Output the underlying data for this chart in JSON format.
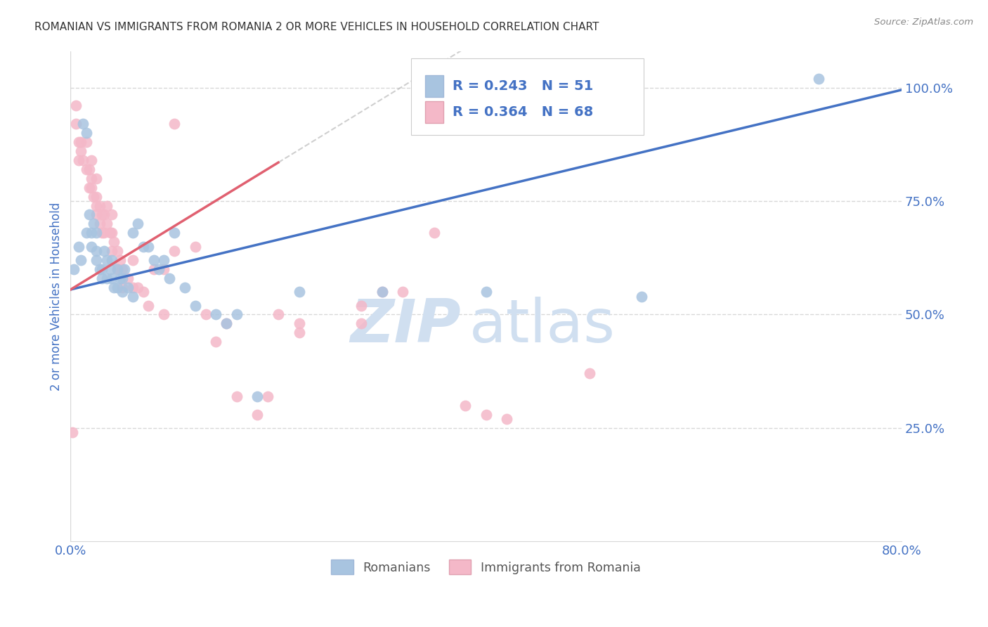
{
  "title": "ROMANIAN VS IMMIGRANTS FROM ROMANIA 2 OR MORE VEHICLES IN HOUSEHOLD CORRELATION CHART",
  "source": "Source: ZipAtlas.com",
  "ylabel": "2 or more Vehicles in Household",
  "xlim": [
    0.0,
    0.8
  ],
  "ylim": [
    0.0,
    1.08
  ],
  "romanians_color": "#a8c4e0",
  "immigrants_color": "#f4b8c8",
  "trendline_romanians_color": "#4472c4",
  "trendline_immigrants_color": "#e06070",
  "bg_color": "#ffffff",
  "grid_color": "#d8d8d8",
  "title_color": "#333333",
  "axis_label_color": "#4472c4",
  "watermark": "ZIPatlas",
  "watermark_color": "#d0dff0",
  "romanians_x": [
    0.003,
    0.008,
    0.01,
    0.012,
    0.015,
    0.015,
    0.018,
    0.02,
    0.02,
    0.022,
    0.025,
    0.025,
    0.025,
    0.028,
    0.03,
    0.03,
    0.032,
    0.035,
    0.035,
    0.038,
    0.04,
    0.04,
    0.042,
    0.045,
    0.045,
    0.048,
    0.05,
    0.05,
    0.052,
    0.055,
    0.06,
    0.06,
    0.065,
    0.07,
    0.075,
    0.08,
    0.085,
    0.09,
    0.095,
    0.1,
    0.11,
    0.12,
    0.14,
    0.15,
    0.16,
    0.18,
    0.22,
    0.3,
    0.4,
    0.55,
    0.72
  ],
  "romanians_y": [
    0.6,
    0.65,
    0.62,
    0.92,
    0.9,
    0.68,
    0.72,
    0.68,
    0.65,
    0.7,
    0.64,
    0.68,
    0.62,
    0.6,
    0.6,
    0.58,
    0.64,
    0.62,
    0.58,
    0.6,
    0.58,
    0.62,
    0.56,
    0.6,
    0.56,
    0.58,
    0.58,
    0.55,
    0.6,
    0.56,
    0.54,
    0.68,
    0.7,
    0.65,
    0.65,
    0.62,
    0.6,
    0.62,
    0.58,
    0.68,
    0.56,
    0.52,
    0.5,
    0.48,
    0.5,
    0.32,
    0.55,
    0.55,
    0.55,
    0.54,
    1.02
  ],
  "immigrants_x": [
    0.002,
    0.005,
    0.005,
    0.008,
    0.008,
    0.01,
    0.01,
    0.012,
    0.015,
    0.015,
    0.018,
    0.018,
    0.02,
    0.02,
    0.02,
    0.022,
    0.025,
    0.025,
    0.025,
    0.025,
    0.028,
    0.028,
    0.03,
    0.03,
    0.032,
    0.032,
    0.035,
    0.035,
    0.038,
    0.04,
    0.04,
    0.04,
    0.042,
    0.045,
    0.045,
    0.048,
    0.05,
    0.05,
    0.055,
    0.06,
    0.06,
    0.065,
    0.07,
    0.075,
    0.08,
    0.09,
    0.09,
    0.1,
    0.1,
    0.12,
    0.13,
    0.14,
    0.15,
    0.16,
    0.18,
    0.19,
    0.2,
    0.22,
    0.22,
    0.28,
    0.28,
    0.3,
    0.32,
    0.35,
    0.38,
    0.4,
    0.42,
    0.5
  ],
  "immigrants_y": [
    0.24,
    0.96,
    0.92,
    0.88,
    0.84,
    0.86,
    0.88,
    0.84,
    0.88,
    0.82,
    0.82,
    0.78,
    0.8,
    0.84,
    0.78,
    0.76,
    0.8,
    0.76,
    0.74,
    0.72,
    0.74,
    0.7,
    0.72,
    0.68,
    0.72,
    0.68,
    0.74,
    0.7,
    0.68,
    0.72,
    0.68,
    0.64,
    0.66,
    0.64,
    0.6,
    0.62,
    0.6,
    0.56,
    0.58,
    0.56,
    0.62,
    0.56,
    0.55,
    0.52,
    0.6,
    0.6,
    0.5,
    0.92,
    0.64,
    0.65,
    0.5,
    0.44,
    0.48,
    0.32,
    0.28,
    0.32,
    0.5,
    0.48,
    0.46,
    0.52,
    0.48,
    0.55,
    0.55,
    0.68,
    0.3,
    0.28,
    0.27,
    0.37
  ],
  "trendline_rom_slope": 0.55,
  "trendline_rom_intercept": 0.555,
  "trendline_imm_slope": 1.4,
  "trendline_imm_intercept": 0.555
}
